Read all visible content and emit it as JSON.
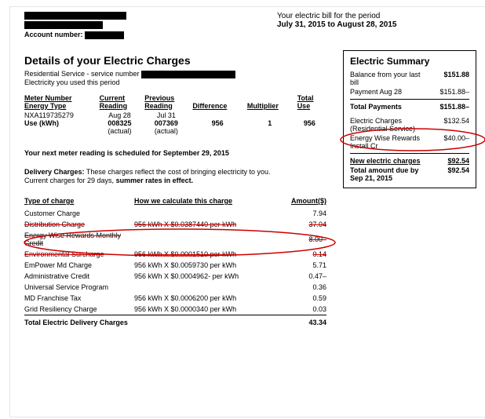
{
  "header": {
    "account_label": "Account number:",
    "period_intro": "Your electric bill for the period",
    "period_range": "July 31, 2015 to August 28, 2015"
  },
  "details": {
    "title": "Details of your Electric Charges",
    "service_line": "Residential Service - service number",
    "usage_line": "Electricity you used this period",
    "meter_headers": {
      "meter": "Meter Number",
      "energy": "Energy Type",
      "cur": "Current",
      "reading": "Reading",
      "prev": "Previous",
      "diff": "Difference",
      "mult": "Multiplier",
      "total": "Total",
      "use": "Use"
    },
    "meter_row": {
      "meter_no": "NXA119735279",
      "use_label": "Use (kWh)",
      "cur_date": "Aug 28",
      "cur_val": "008325",
      "actual": "(actual)",
      "prev_date": "Jul 31",
      "prev_val": "007369",
      "diff": "956",
      "mult": "1",
      "total": "956"
    },
    "next_reading": "Your next meter reading is scheduled for September 29, 2015",
    "delivery_label": "Delivery Charges:",
    "delivery_text1": "  These charges reflect the cost of bringing electricity to you.",
    "delivery_text2": "Current charges for 29 days, ",
    "delivery_text3": "summer rates in effect."
  },
  "charges": {
    "col_type": "Type of charge",
    "col_calc": "How we calculate this charge",
    "col_amt": "Amount($)",
    "rows": [
      {
        "type": "Customer Charge",
        "calc": "",
        "amt": "7.94",
        "strike": false
      },
      {
        "type": "Distribution Charge",
        "calc": "956 kWh X $0.0387440 per kWh",
        "amt": "37.04",
        "strike": true
      },
      {
        "type": "Energy Wise Rewards Monthly Credit",
        "calc": "",
        "amt": "8.00–",
        "strike": true
      },
      {
        "type": "Environmental Surcharge",
        "calc": "956 kWh X $0.0001510 per kWh",
        "amt": "0.14",
        "strike": true
      },
      {
        "type": "EmPower Md Charge",
        "calc": "956 kWh X $0.0059730 per kWh",
        "amt": "5.71",
        "strike": false
      },
      {
        "type": "Administrative Credit",
        "calc": "956 kWh X $0.0004962- per kWh",
        "amt": "0.47–",
        "strike": false
      },
      {
        "type": "Universal Service Program",
        "calc": "",
        "amt": "0.36",
        "strike": false
      },
      {
        "type": "MD Franchise Tax",
        "calc": "956 kWh X $0.0006200 per kWh",
        "amt": "0.59",
        "strike": false
      },
      {
        "type": "Grid Resiliency Charge",
        "calc": "956 kWh X $0.0000340 per kWh",
        "amt": "0.03",
        "strike": false
      }
    ],
    "total_label": "Total Electric Delivery Charges",
    "total_amt": "43.34"
  },
  "summary": {
    "title": "Electric Summary",
    "rows": [
      {
        "label": "Balance from your last bill",
        "val": "$151.88",
        "bold_val": true
      },
      {
        "label": "Payment Aug 28",
        "val": "$151.88–"
      }
    ],
    "total_payments_label": "Total Payments",
    "total_payments_val": "$151.88–",
    "rows2": [
      {
        "label": "Electric Charges (Residential Service)",
        "val": "$132.54"
      },
      {
        "label": "Energy Wise Rewards Install Cr",
        "val": "$40.00–"
      }
    ],
    "new_charges_label": "New electric charges",
    "new_charges_val": "$92.54",
    "due_label": "Total amount due by Sep 21, 2015",
    "due_val": "$92.54"
  },
  "style": {
    "ellipse_color": "#cc0000",
    "ellipse_stroke": 1.5
  }
}
